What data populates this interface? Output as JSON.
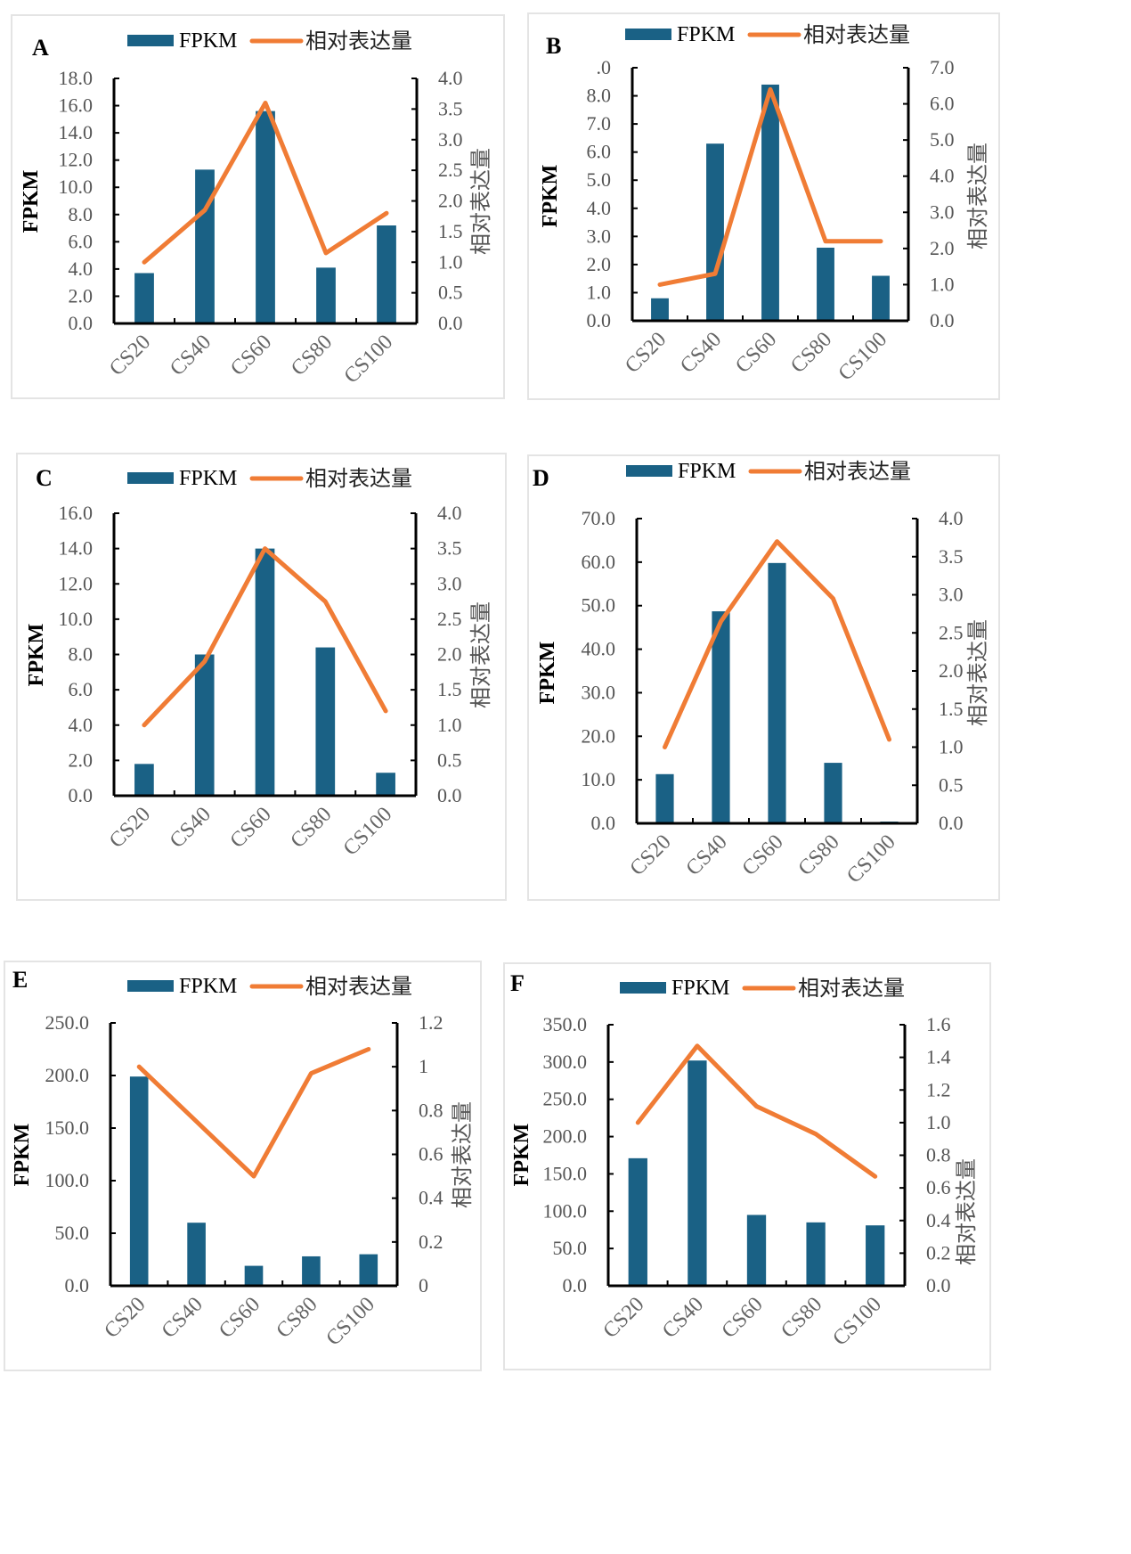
{
  "colors": {
    "bar": "#1a6185",
    "line": "#f07c35",
    "axis": "#000000"
  },
  "legend": {
    "bar_label": "FPKM",
    "line_label": "相对表达量"
  },
  "chart_data": [
    {
      "type": "bar+line",
      "panel": "A",
      "categories": [
        "CS20",
        "CS40",
        "CS60",
        "CS80",
        "CS100"
      ],
      "series": [
        {
          "name": "FPKM",
          "type": "bar",
          "axis": "left",
          "values": [
            3.7,
            11.3,
            15.6,
            4.1,
            7.2
          ]
        },
        {
          "name": "相对表达量",
          "type": "line",
          "axis": "right",
          "values": [
            1.0,
            1.85,
            3.6,
            1.15,
            1.8
          ]
        }
      ],
      "ylabel": "FPKM",
      "y2label": "相对表达量",
      "ylim": [
        0,
        18
      ],
      "y2lim": [
        0,
        4
      ],
      "yticks": [
        "0.0",
        "2.0",
        "4.0",
        "6.0",
        "8.0",
        "10.0",
        "12.0",
        "14.0",
        "16.0",
        "18.0"
      ],
      "y2ticks": [
        "0.0",
        "0.5",
        "1.0",
        "1.5",
        "2.0",
        "2.5",
        "3.0",
        "3.5",
        "4.0"
      ],
      "legend": "top"
    },
    {
      "type": "bar+line",
      "panel": "B",
      "categories": [
        "CS20",
        "CS40",
        "CS60",
        "CS80",
        "CS100"
      ],
      "series": [
        {
          "name": "FPKM",
          "type": "bar",
          "axis": "left",
          "values": [
            0.8,
            6.3,
            8.4,
            2.6,
            1.6
          ]
        },
        {
          "name": "相对表达量",
          "type": "line",
          "axis": "right",
          "values": [
            1.0,
            1.3,
            6.4,
            2.2,
            2.2
          ]
        }
      ],
      "ylabel": "FPKM",
      "y2label": "相对表达量",
      "ylim": [
        0,
        9
      ],
      "y2lim": [
        0,
        7
      ],
      "yticks": [
        "0.0",
        "1.0",
        "2.0",
        "3.0",
        "4.0",
        "5.0",
        "6.0",
        "7.0",
        "8.0",
        ".0"
      ],
      "y2ticks": [
        "0.0",
        "1.0",
        "2.0",
        "3.0",
        "4.0",
        "5.0",
        "6.0",
        "7.0"
      ],
      "legend": "top"
    },
    {
      "type": "bar+line",
      "panel": "C",
      "categories": [
        "CS20",
        "CS40",
        "CS60",
        "CS80",
        "CS100"
      ],
      "series": [
        {
          "name": "FPKM",
          "type": "bar",
          "axis": "left",
          "values": [
            1.8,
            8.0,
            14.0,
            8.4,
            1.3
          ]
        },
        {
          "name": "相对表达量",
          "type": "line",
          "axis": "right",
          "values": [
            1.0,
            1.9,
            3.5,
            2.75,
            1.2
          ]
        }
      ],
      "ylabel": "FPKM",
      "y2label": "相对表达量",
      "ylim": [
        0,
        16
      ],
      "y2lim": [
        0,
        4
      ],
      "yticks": [
        "0.0",
        "2.0",
        "4.0",
        "6.0",
        "8.0",
        "10.0",
        "12.0",
        "14.0",
        "16.0"
      ],
      "y2ticks": [
        "0.0",
        "0.5",
        "1.0",
        "1.5",
        "2.0",
        "2.5",
        "3.0",
        "3.5",
        "4.0"
      ],
      "legend": "top"
    },
    {
      "type": "bar+line",
      "panel": "D",
      "categories": [
        "CS20",
        "CS40",
        "CS60",
        "CS80",
        "CS100"
      ],
      "series": [
        {
          "name": "FPKM",
          "type": "bar",
          "axis": "left",
          "values": [
            11.3,
            48.7,
            59.8,
            13.9,
            0.4
          ]
        },
        {
          "name": "相对表达量",
          "type": "line",
          "axis": "right",
          "values": [
            1.0,
            2.65,
            3.7,
            2.95,
            1.1
          ]
        }
      ],
      "ylabel": "FPKM",
      "y2label": "相对表达量",
      "ylim": [
        0,
        70
      ],
      "y2lim": [
        0,
        4
      ],
      "yticks": [
        "0.0",
        "10.0",
        "20.0",
        "30.0",
        "40.0",
        "50.0",
        "60.0",
        "70.0"
      ],
      "y2ticks": [
        "0.0",
        "0.5",
        "1.0",
        "1.5",
        "2.0",
        "2.5",
        "3.0",
        "3.5",
        "4.0"
      ],
      "legend": "top"
    },
    {
      "type": "bar+line",
      "panel": "E",
      "categories": [
        "CS20",
        "CS40",
        "CS60",
        "CS80",
        "CS100"
      ],
      "series": [
        {
          "name": "FPKM",
          "type": "bar",
          "axis": "left",
          "values": [
            199,
            60,
            19,
            28,
            30
          ]
        },
        {
          "name": "相对表达量",
          "type": "line",
          "axis": "right",
          "values": [
            1.0,
            0.75,
            0.5,
            0.97,
            1.08
          ]
        }
      ],
      "ylabel": "FPKM",
      "y2label": "相对表达量",
      "ylim": [
        0,
        250
      ],
      "y2lim": [
        0,
        1.2
      ],
      "yticks": [
        "0.0",
        "50.0",
        "100.0",
        "150.0",
        "200.0",
        "250.0"
      ],
      "y2ticks": [
        "0",
        "0.2",
        "0.4",
        "0.6",
        "0.8",
        "1",
        "1.2"
      ],
      "legend": "top"
    },
    {
      "type": "bar+line",
      "panel": "F",
      "categories": [
        "CS20",
        "CS40",
        "CS60",
        "CS80",
        "CS100"
      ],
      "series": [
        {
          "name": "FPKM",
          "type": "bar",
          "axis": "left",
          "values": [
            171,
            302,
            95,
            85,
            81
          ]
        },
        {
          "name": "相对表达量",
          "type": "line",
          "axis": "right",
          "values": [
            1.0,
            1.47,
            1.1,
            0.93,
            0.67
          ]
        }
      ],
      "ylabel": "FPKM",
      "y2label": "相对表达量",
      "ylim": [
        0,
        350
      ],
      "y2lim": [
        0,
        1.6
      ],
      "yticks": [
        "0.0",
        "50.0",
        "100.0",
        "150.0",
        "200.0",
        "250.0",
        "300.0",
        "350.0"
      ],
      "y2ticks": [
        "0.0",
        "0.2",
        "0.4",
        "0.6",
        "0.8",
        "1.0",
        "1.2",
        "1.4",
        "1.6"
      ],
      "legend": "top"
    }
  ]
}
